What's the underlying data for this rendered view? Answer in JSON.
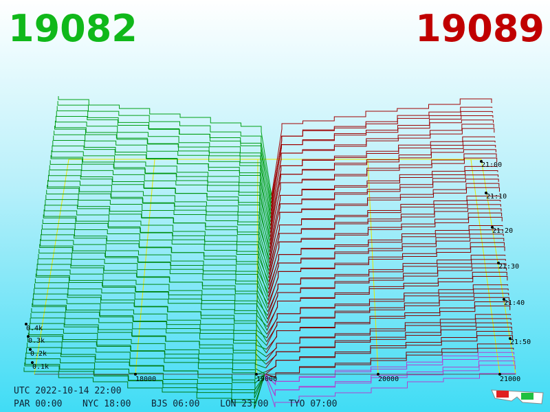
{
  "header": {
    "bid": "19082",
    "ask": "19089"
  },
  "axis": {
    "price_labels": [
      "18000",
      "19000",
      "20000",
      "21000"
    ],
    "time_labels": [
      "21:00",
      "21:10",
      "21:20",
      "21:30",
      "21:40",
      "21:50"
    ],
    "volume_labels": [
      "0.4k",
      "0.3k",
      "0.2k",
      "0.1k"
    ]
  },
  "footer": {
    "utc": "UTC 2022-10-14 22:00",
    "zones": [
      "PAR 00:00",
      "NYC 18:00",
      "BJS 06:00",
      "LON 23:00",
      "TYO 07:00"
    ]
  }
}
